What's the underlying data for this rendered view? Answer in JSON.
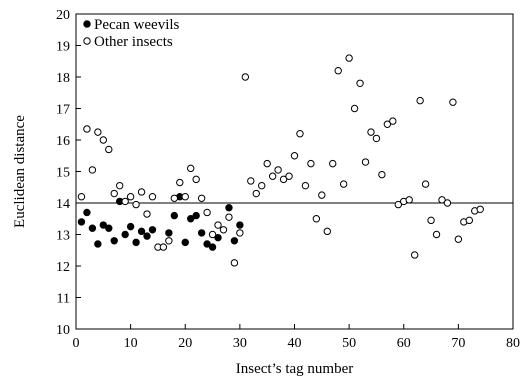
{
  "chart_data": {
    "type": "scatter",
    "xlabel": "Insect’s tag number",
    "ylabel": "Euclidean distance",
    "xlim": [
      0,
      80
    ],
    "ylim": [
      10,
      20
    ],
    "xticks": [
      0,
      10,
      20,
      30,
      40,
      50,
      60,
      70,
      80
    ],
    "yticks": [
      10,
      11,
      12,
      13,
      14,
      15,
      16,
      17,
      18,
      19,
      20
    ],
    "grid": false,
    "legend_position": "top-left",
    "reference_line": {
      "y": 14.0
    },
    "series": [
      {
        "name": "Pecan weevils",
        "marker": "filled-circle",
        "points": [
          [
            1,
            13.4
          ],
          [
            2,
            13.7
          ],
          [
            3,
            13.2
          ],
          [
            4,
            12.7
          ],
          [
            5,
            13.3
          ],
          [
            6,
            13.2
          ],
          [
            7,
            12.8
          ],
          [
            8,
            14.05
          ],
          [
            9,
            13.0
          ],
          [
            10,
            13.25
          ],
          [
            11,
            12.75
          ],
          [
            12,
            13.1
          ],
          [
            13,
            12.95
          ],
          [
            14,
            13.15
          ],
          [
            17,
            13.05
          ],
          [
            18,
            13.6
          ],
          [
            19,
            14.2
          ],
          [
            20,
            12.75
          ],
          [
            21,
            13.5
          ],
          [
            22,
            13.6
          ],
          [
            23,
            13.05
          ],
          [
            24,
            12.7
          ],
          [
            25,
            12.6
          ],
          [
            26,
            12.9
          ],
          [
            28,
            13.85
          ],
          [
            29,
            12.8
          ],
          [
            30,
            13.3
          ]
        ]
      },
      {
        "name": "Other insects",
        "marker": "open-circle",
        "points": [
          [
            1,
            14.2
          ],
          [
            2,
            16.35
          ],
          [
            3,
            15.05
          ],
          [
            4,
            16.25
          ],
          [
            5,
            16.0
          ],
          [
            6,
            15.7
          ],
          [
            7,
            14.3
          ],
          [
            8,
            14.55
          ],
          [
            9,
            14.05
          ],
          [
            10,
            14.2
          ],
          [
            11,
            13.95
          ],
          [
            12,
            14.35
          ],
          [
            13,
            13.65
          ],
          [
            14,
            14.2
          ],
          [
            15,
            12.6
          ],
          [
            16,
            12.6
          ],
          [
            17,
            12.8
          ],
          [
            18,
            14.15
          ],
          [
            19,
            14.65
          ],
          [
            20,
            14.2
          ],
          [
            21,
            15.1
          ],
          [
            22,
            14.75
          ],
          [
            23,
            14.15
          ],
          [
            24,
            13.7
          ],
          [
            25,
            13.0
          ],
          [
            26,
            13.3
          ],
          [
            27,
            13.15
          ],
          [
            28,
            13.55
          ],
          [
            29,
            12.1
          ],
          [
            30,
            13.05
          ],
          [
            31,
            18.0
          ],
          [
            32,
            14.7
          ],
          [
            33,
            14.3
          ],
          [
            34,
            14.55
          ],
          [
            35,
            15.25
          ],
          [
            36,
            14.85
          ],
          [
            37,
            15.05
          ],
          [
            38,
            14.75
          ],
          [
            39,
            14.85
          ],
          [
            40,
            15.5
          ],
          [
            41,
            16.2
          ],
          [
            42,
            14.55
          ],
          [
            43,
            15.25
          ],
          [
            44,
            13.5
          ],
          [
            45,
            14.25
          ],
          [
            46,
            13.1
          ],
          [
            47,
            15.25
          ],
          [
            48,
            18.2
          ],
          [
            49,
            14.6
          ],
          [
            50,
            18.6
          ],
          [
            51,
            17.0
          ],
          [
            52,
            17.8
          ],
          [
            53,
            15.3
          ],
          [
            54,
            16.25
          ],
          [
            55,
            16.05
          ],
          [
            56,
            14.9
          ],
          [
            57,
            16.5
          ],
          [
            58,
            16.6
          ],
          [
            59,
            13.95
          ],
          [
            60,
            14.05
          ],
          [
            61,
            14.1
          ],
          [
            62,
            12.35
          ],
          [
            63,
            17.25
          ],
          [
            64,
            14.6
          ],
          [
            65,
            13.45
          ],
          [
            66,
            13.0
          ],
          [
            67,
            14.1
          ],
          [
            68,
            14.0
          ],
          [
            69,
            17.2
          ],
          [
            70,
            12.85
          ],
          [
            71,
            13.4
          ],
          [
            72,
            13.45
          ],
          [
            73,
            13.75
          ],
          [
            74,
            13.8
          ]
        ]
      }
    ]
  }
}
